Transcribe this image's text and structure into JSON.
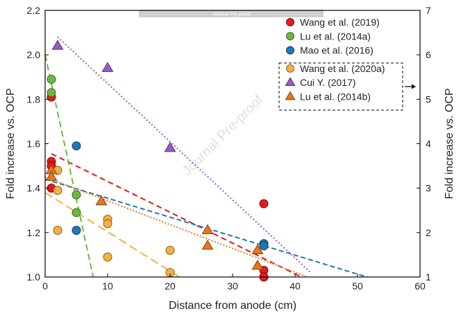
{
  "watermark": {
    "banner": "Journal Pre-proof",
    "diagonal": "Journal Pre-proof"
  },
  "chart_data": {
    "type": "scatter",
    "title": "",
    "xlabel": "Distance from anode (cm)",
    "ylabel": "Fold increase vs. OCP",
    "y2label": "Fold increase vs. OCP",
    "xlim": [
      0,
      60
    ],
    "ylim": [
      1.0,
      2.2
    ],
    "y2lim": [
      1,
      7
    ],
    "xticks": [
      0,
      10,
      20,
      30,
      40,
      50,
      60
    ],
    "yticks": [
      1.0,
      1.2,
      1.4,
      1.6,
      1.8,
      2.0,
      2.2
    ],
    "y2ticks": [
      1,
      2,
      3,
      4,
      5,
      6,
      7
    ],
    "grid": false,
    "legend_position": "top-right",
    "secondary_axis_arrow": "right",
    "series": [
      {
        "name": "Wang et al. (2019)",
        "marker": "circle",
        "color": "#e31a1c",
        "axis": "left",
        "points": [
          [
            1,
            1.81
          ],
          [
            1,
            1.52
          ],
          [
            1,
            1.5
          ],
          [
            1,
            1.4
          ],
          [
            35,
            1.33
          ],
          [
            35,
            1.03
          ],
          [
            35,
            1.0
          ]
        ],
        "fit": {
          "x": [
            1,
            41
          ],
          "y": [
            1.555,
            1.0
          ]
        }
      },
      {
        "name": "Lu et al. (2014a)",
        "marker": "circle",
        "color": "#6ab93f",
        "axis": "left",
        "points": [
          [
            1,
            1.89
          ],
          [
            1,
            1.83
          ],
          [
            5,
            1.37
          ],
          [
            5,
            1.29
          ]
        ],
        "fit": {
          "x": [
            0,
            7.7
          ],
          "y": [
            2.0,
            1.0
          ]
        }
      },
      {
        "name": "Mao et al. (2016)",
        "marker": "circle",
        "color": "#1f78b4",
        "axis": "left",
        "points": [
          [
            5,
            1.59
          ],
          [
            5,
            1.21
          ],
          [
            35,
            1.15
          ],
          [
            35,
            1.14
          ]
        ],
        "fit": {
          "x": [
            0,
            51.5
          ],
          "y": [
            1.44,
            1.0
          ]
        }
      },
      {
        "name": "Wang et al. (2020a)",
        "marker": "circle",
        "color": "#f5b041",
        "axis": "left",
        "points": [
          [
            2,
            1.48
          ],
          [
            2,
            1.39
          ],
          [
            2,
            1.21
          ],
          [
            10,
            1.26
          ],
          [
            10,
            1.24
          ],
          [
            10,
            1.09
          ],
          [
            20,
            1.12
          ],
          [
            20,
            1.02
          ]
        ],
        "fit": {
          "x": [
            0,
            21.5
          ],
          "y": [
            1.38,
            1.0
          ]
        }
      },
      {
        "name": "Cui Y. (2017)",
        "marker": "triangle",
        "color": "#9b59c6",
        "axis": "right",
        "points": [
          [
            2,
            6.2
          ],
          [
            10,
            5.7
          ],
          [
            20,
            3.9
          ]
        ],
        "fit": {
          "x": [
            2,
            42.5
          ],
          "y": [
            6.4,
            1.1
          ]
        }
      },
      {
        "name": "Lu et al. (2014b)",
        "marker": "triangle",
        "color": "#e8761c",
        "axis": "left",
        "points": [
          [
            1,
            1.48
          ],
          [
            1,
            1.45
          ],
          [
            9,
            1.34
          ],
          [
            26,
            1.21
          ],
          [
            26,
            1.14
          ],
          [
            34,
            1.12
          ],
          [
            34,
            1.05
          ]
        ],
        "fit": {
          "x": [
            0,
            42
          ],
          "y": [
            1.45,
            1.0
          ]
        }
      }
    ]
  }
}
